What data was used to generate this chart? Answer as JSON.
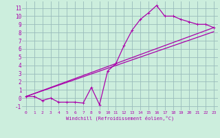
{
  "xlabel": "Windchill (Refroidissement éolien,°C)",
  "bg_color": "#cceedd",
  "grid_color": "#99bbbb",
  "line_color": "#aa00aa",
  "xlim": [
    -0.5,
    23.5
  ],
  "ylim": [
    -1.5,
    11.8
  ],
  "xticks": [
    0,
    1,
    2,
    3,
    4,
    5,
    6,
    7,
    8,
    9,
    10,
    11,
    12,
    13,
    14,
    15,
    16,
    17,
    18,
    19,
    20,
    21,
    22,
    23
  ],
  "yticks": [
    -1,
    0,
    1,
    2,
    3,
    4,
    5,
    6,
    7,
    8,
    9,
    10,
    11
  ],
  "series1_x": [
    0,
    1,
    2,
    3,
    4,
    5,
    6,
    7,
    8,
    9,
    10,
    11,
    12,
    13,
    14,
    15,
    16,
    17,
    18,
    19,
    20,
    21,
    22,
    23
  ],
  "series1_y": [
    0.2,
    0.2,
    -0.3,
    0.0,
    -0.5,
    -0.5,
    -0.5,
    -0.6,
    1.3,
    -0.8,
    3.3,
    4.2,
    6.4,
    8.3,
    9.6,
    10.4,
    11.3,
    10.0,
    10.0,
    9.6,
    9.3,
    9.0,
    9.0,
    8.6
  ],
  "line2_x": [
    0,
    23
  ],
  "line2_y": [
    0.2,
    8.6
  ],
  "line3_x": [
    0,
    23
  ],
  "line3_y": [
    0.2,
    8.1
  ],
  "line_width": 0.9,
  "marker_size": 2.5
}
